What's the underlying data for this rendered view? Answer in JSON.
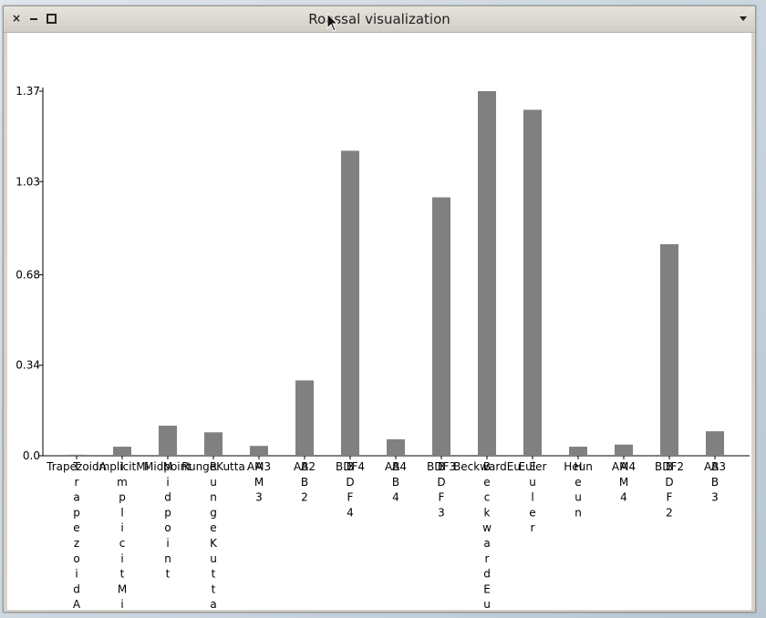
{
  "window": {
    "title": "Roassal visualization",
    "close_glyph": "×",
    "icons": {
      "close": "close-icon",
      "minimize": "minimize-icon",
      "maximize": "maximize-icon",
      "menu": "chevron-down-icon"
    }
  },
  "chart_data": {
    "type": "bar",
    "title": "",
    "xlabel": "",
    "ylabel": "",
    "ylim": [
      0,
      1.37
    ],
    "yticks": [
      "0.0",
      "0.34",
      "0.68",
      "1.03",
      "1.37"
    ],
    "ytick_values": [
      0,
      0.34,
      0.68,
      1.03,
      1.37
    ],
    "bar_color": "#808080",
    "categories": [
      "TrapezoidA",
      "ImplicitMi",
      "Midpoint",
      "RungeKutta",
      "AM3",
      "AB2",
      "BDF4",
      "AB4",
      "BDF3",
      "BeckwardEu",
      "Euler",
      "Heun",
      "AM4",
      "BDF2",
      "AB3"
    ],
    "values": [
      0.004,
      0.034,
      0.113,
      0.088,
      0.037,
      0.283,
      1.146,
      0.062,
      0.971,
      1.37,
      1.3,
      0.034,
      0.042,
      0.795,
      0.092
    ],
    "grid": false,
    "legend": "none"
  }
}
